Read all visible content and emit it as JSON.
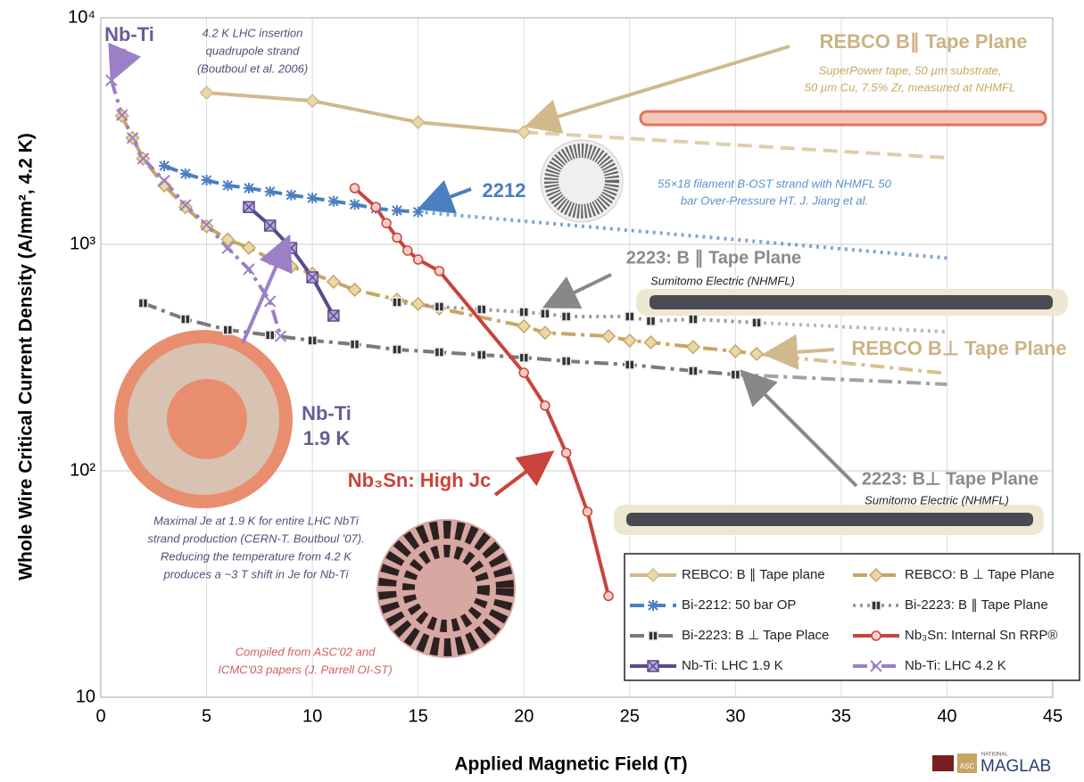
{
  "chart_data": {
    "type": "line",
    "x_label": "Applied Magnetic Field (T)",
    "y_label": "Whole Wire Critical Current Density (A/mm², 4.2 K)",
    "xlim": [
      0,
      45
    ],
    "xticks": [
      0,
      5,
      10,
      15,
      20,
      25,
      30,
      35,
      40,
      45
    ],
    "ylim": [
      10,
      10000
    ],
    "y_log_scale": true,
    "yticks": [
      {
        "value": 10,
        "label": "10"
      },
      {
        "value": 100,
        "label": "10²"
      },
      {
        "value": 1000,
        "label": "10³"
      },
      {
        "value": 10000,
        "label": "10⁴"
      }
    ],
    "grid": true,
    "legend_position": "lower right",
    "series": [
      {
        "name": "REBCO: B ∥ Tape plane",
        "color": "#d2b98c",
        "line_style": "solid",
        "marker": "diamond",
        "x": [
          5,
          10,
          15,
          20
        ],
        "values": [
          4670,
          4300,
          3460,
          3130
        ],
        "extrapolation_x": [
          20,
          40
        ],
        "extrapolation_values": [
          3130,
          2410
        ],
        "extrapolation_style": "dashed"
      },
      {
        "name": "REBCO: B ⊥ Tape Plane",
        "color": "#c8a565",
        "line_style": "dashdot",
        "marker": "diamond",
        "x": [
          1,
          1.5,
          2,
          3,
          4,
          5,
          6,
          7,
          8,
          9,
          10,
          11,
          12,
          14,
          15,
          16,
          20,
          21,
          24,
          25,
          26,
          28,
          30,
          31
        ],
        "values": [
          3690,
          2950,
          2390,
          1820,
          1460,
          1200,
          1050,
          965,
          865,
          798,
          742,
          684,
          630,
          570,
          545,
          521,
          435,
          407,
          393,
          376,
          369,
          352,
          337,
          328
        ],
        "extrapolation_x": [
          31,
          40
        ],
        "extrapolation_values": [
          328,
          269
        ],
        "extrapolation_style": "dashdot"
      },
      {
        "name": "Bi-2212: 50 bar OP",
        "color": "#4a7fc1",
        "line_style": "dashed",
        "marker": "asterisk",
        "x": [
          3,
          4,
          5,
          6,
          7,
          8,
          9,
          10,
          11,
          12,
          13,
          14,
          15
        ],
        "values": [
          2220,
          2050,
          1920,
          1820,
          1770,
          1710,
          1650,
          1600,
          1550,
          1500,
          1440,
          1410,
          1390
        ],
        "extrapolation_x": [
          15,
          40
        ],
        "extrapolation_values": [
          1390,
          870
        ],
        "extrapolation_style": "dotted"
      },
      {
        "name": "Bi-2223: B ∥ Tape Plane",
        "color": "#9a9a9a",
        "line_style": "dotted",
        "marker": "square",
        "x": [
          14,
          16,
          18,
          20,
          21,
          22,
          25,
          26,
          28,
          31
        ],
        "values": [
          555,
          530,
          516,
          502,
          494,
          480,
          480,
          458,
          467,
          451
        ],
        "extrapolation_x": [
          31,
          40
        ],
        "extrapolation_values": [
          451,
          411
        ],
        "extrapolation_style": "dotted"
      },
      {
        "name": "Bi-2223: B ⊥ Tape Place",
        "color": "#7a7a7a",
        "line_style": "dashdot",
        "marker": "square",
        "x": [
          2,
          4,
          6,
          8,
          10,
          12,
          14,
          16,
          18,
          20,
          22,
          25,
          28,
          30
        ],
        "values": [
          550,
          467,
          419,
          397,
          376,
          362,
          343,
          334,
          325,
          316,
          305,
          294,
          276,
          266
        ],
        "extrapolation_x": [
          30,
          40
        ],
        "extrapolation_values": [
          266,
          241
        ],
        "extrapolation_style": "dashdot"
      },
      {
        "name": "Nb₃Sn: Internal Sn RRP®",
        "color": "#c9443c",
        "line_style": "solid",
        "marker": "circle",
        "x": [
          12,
          13,
          13.5,
          14,
          14.5,
          15,
          16,
          20,
          21,
          22,
          23,
          24
        ],
        "values": [
          1770,
          1460,
          1240,
          1070,
          938,
          857,
          762,
          271,
          194,
          120,
          66,
          28
        ]
      },
      {
        "name": "Nb-Ti: LHC 1.9 K",
        "color": "#5b4a8a",
        "line_style": "solid",
        "marker": "boxx",
        "x": [
          7,
          8,
          9,
          10,
          11
        ],
        "values": [
          1460,
          1210,
          963,
          715,
          484
        ]
      },
      {
        "name": "Nb-Ti: LHC 4.2 K",
        "color": "#9b7fc7",
        "line_style": "dashdot",
        "marker": "x",
        "x": [
          0.5,
          1,
          1.5,
          2,
          3,
          4,
          5,
          6,
          7,
          8,
          8.5
        ],
        "values": [
          5300,
          3720,
          2950,
          2390,
          1910,
          1490,
          1220,
          963,
          776,
          560,
          393
        ]
      }
    ],
    "annotations": [
      [
        "Nb-Ti"
      ],
      [
        "4.2 K LHC insertion",
        "quadrupole strand",
        "(Boutboul et al. 2006)"
      ],
      [
        "REBCO B∥ Tape Plane"
      ],
      [
        "SuperPower tape, 50 µm substrate,",
        "50 µm Cu, 7.5% Zr, measured at NHMFL"
      ],
      [
        "2212"
      ],
      [
        "55×18 filament B-OST strand with  NHMFL 50",
        "bar Over-Pressure HT. J. Jiang et al."
      ],
      [
        "2223: B ∥ Tape Plane"
      ],
      [
        "Sumitomo Electric (NHMFL)"
      ],
      [
        "REBCO B⊥ Tape Plane"
      ],
      [
        "Nb-Ti",
        "1.9 K"
      ],
      [
        "Nb₃Sn: High Jc"
      ],
      [
        "2223: B⊥ Tape Plane"
      ],
      [
        "Sumitomo Electric (NHMFL)"
      ],
      [
        "Maximal Je at 1.9 K for entire LHC NbTi",
        "strand production (CERN-T. Boutboul '07).",
        "Reducing the temperature from 4.2 K",
        "produces a ~3 T shift in Je for Nb-Ti"
      ],
      [
        "Compiled from ASC'02 and",
        "ICMC'03 papers (J. Parrell OI-ST)"
      ]
    ],
    "logo": [
      "ASC",
      "NATIONAL",
      "MAGLAB"
    ]
  }
}
